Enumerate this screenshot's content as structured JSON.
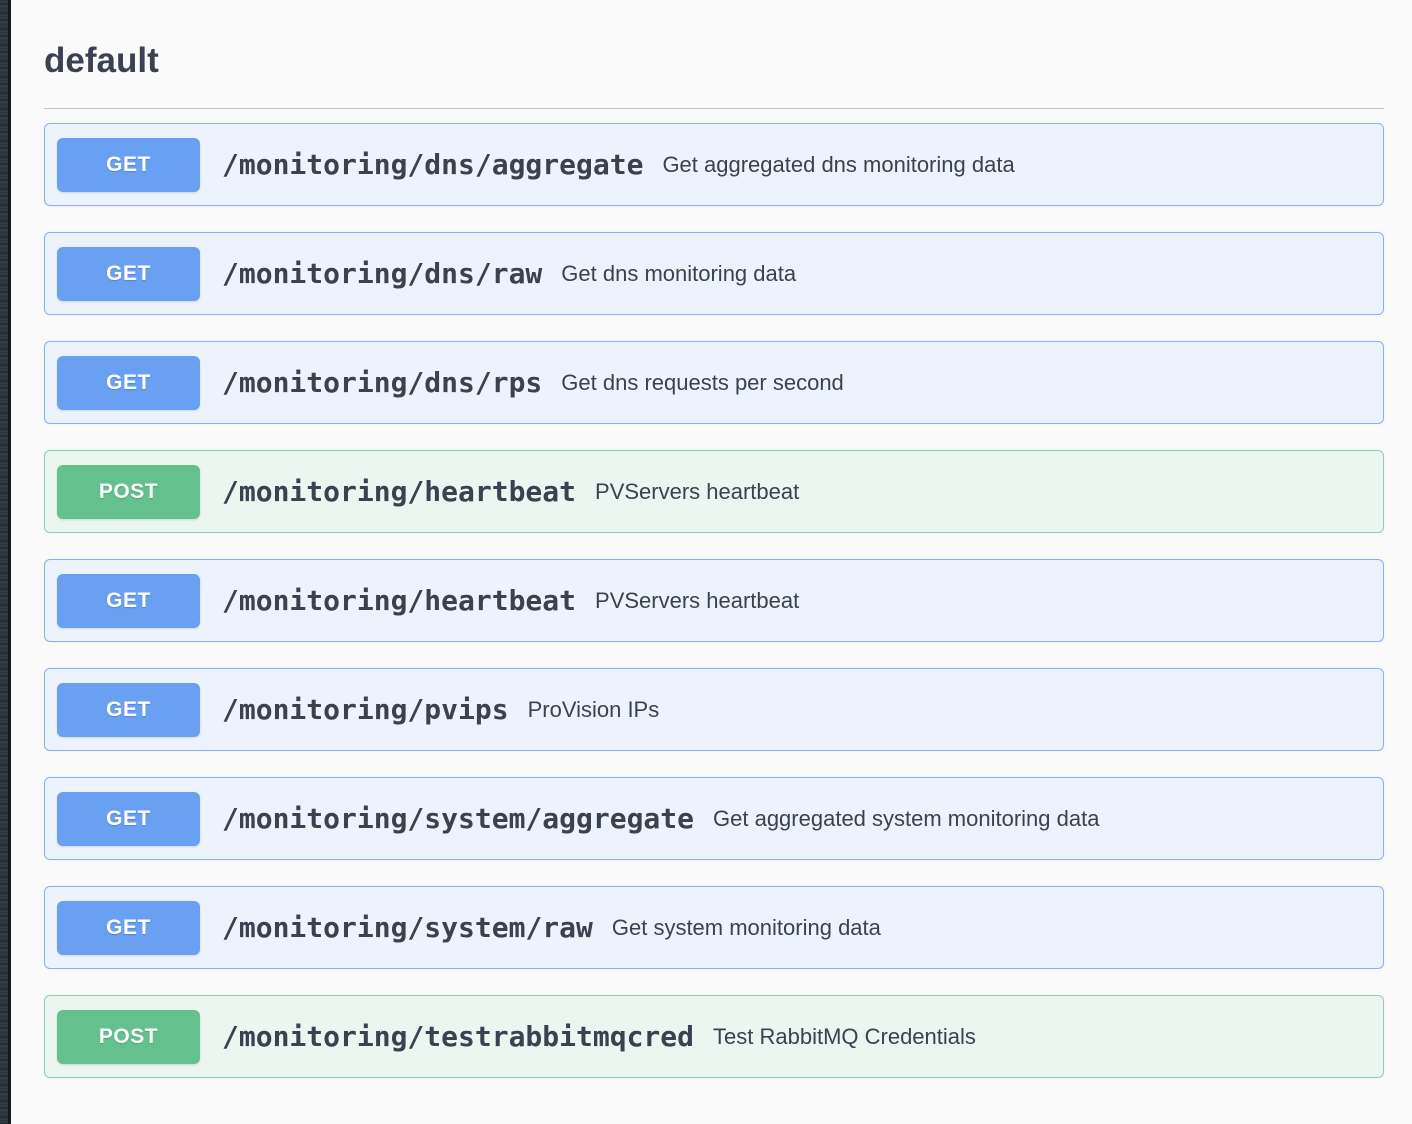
{
  "section": {
    "title": "default"
  },
  "colors": {
    "page_bg": "#fafafa",
    "text": "#3b4151",
    "get_badge": "#69a0f1",
    "get_row_bg": "#ecf3fc",
    "get_row_border": "#8bb2ef",
    "post_badge": "#64c08c",
    "post_row_bg": "#ebf6f0",
    "post_row_border": "#90cfae"
  },
  "operations": [
    {
      "method": "GET",
      "path": "/monitoring/dns/aggregate",
      "summary": "Get aggregated dns monitoring data"
    },
    {
      "method": "GET",
      "path": "/monitoring/dns/raw",
      "summary": "Get dns monitoring data"
    },
    {
      "method": "GET",
      "path": "/monitoring/dns/rps",
      "summary": "Get dns requests per second"
    },
    {
      "method": "POST",
      "path": "/monitoring/heartbeat",
      "summary": "PVServers heartbeat"
    },
    {
      "method": "GET",
      "path": "/monitoring/heartbeat",
      "summary": "PVServers heartbeat"
    },
    {
      "method": "GET",
      "path": "/monitoring/pvips",
      "summary": "ProVision IPs"
    },
    {
      "method": "GET",
      "path": "/monitoring/system/aggregate",
      "summary": "Get aggregated system monitoring data"
    },
    {
      "method": "GET",
      "path": "/monitoring/system/raw",
      "summary": "Get system monitoring data"
    },
    {
      "method": "POST",
      "path": "/monitoring/testrabbitmqcred",
      "summary": "Test RabbitMQ Credentials"
    }
  ]
}
